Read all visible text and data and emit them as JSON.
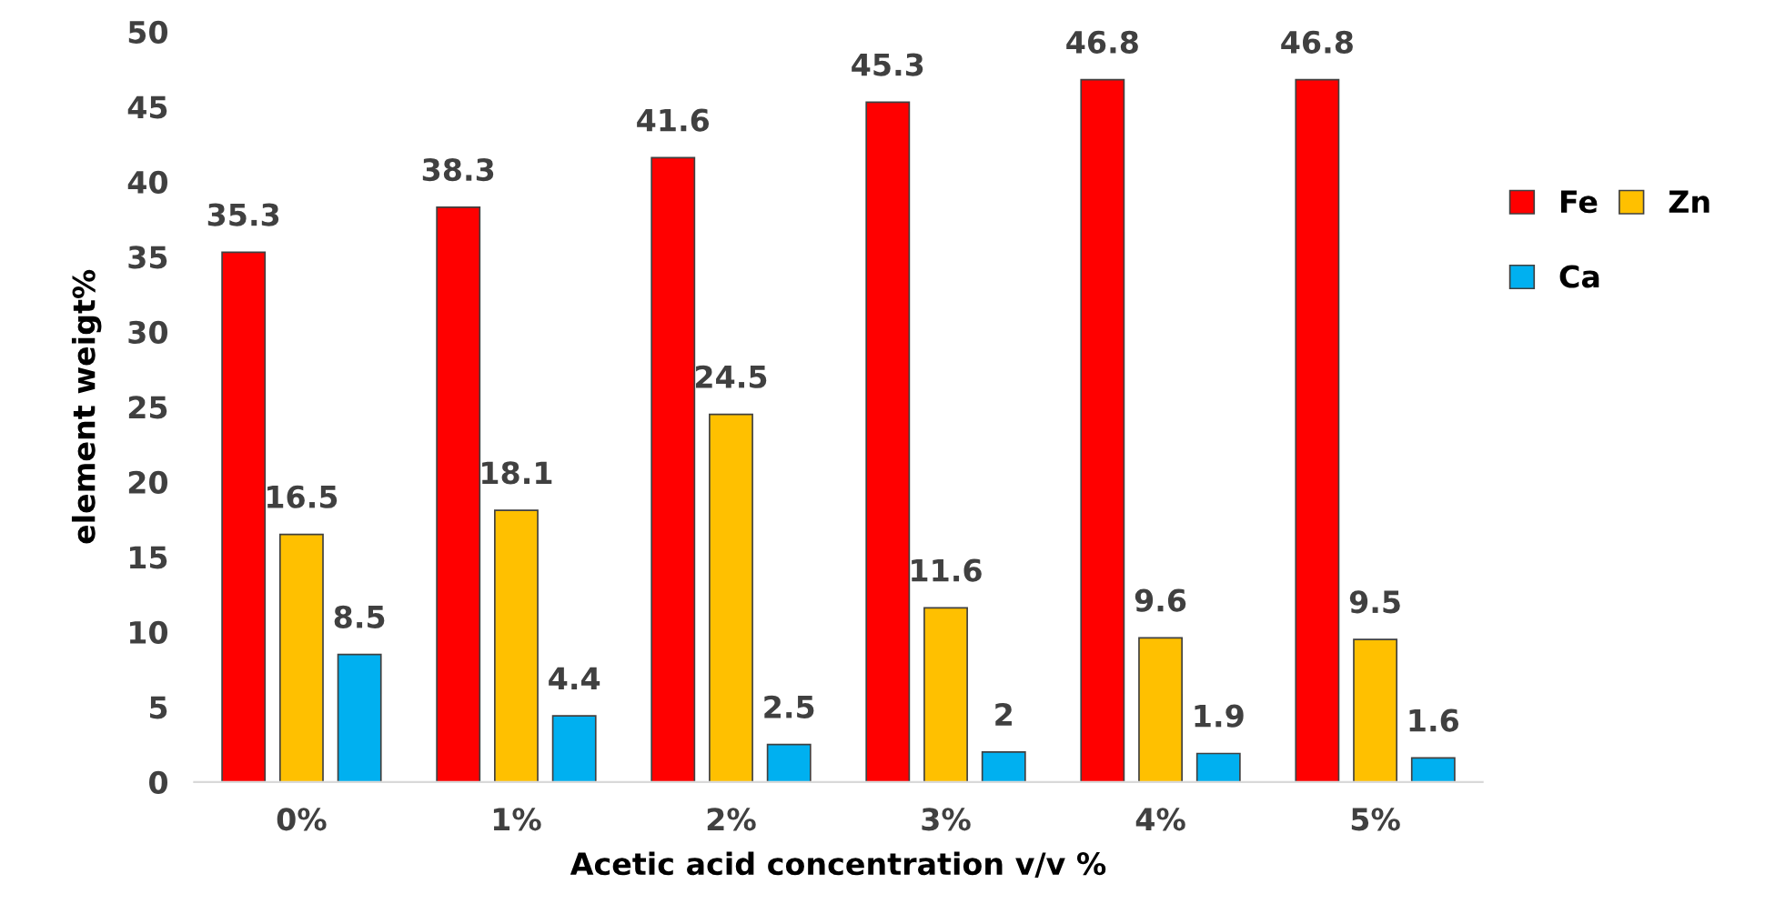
{
  "chart_data": {
    "type": "bar",
    "xlabel": "Acetic acid concentration v/v %",
    "ylabel": "element weigt%",
    "categories": [
      "0%",
      "1%",
      "2%",
      "3%",
      "4%",
      "5%"
    ],
    "series": [
      {
        "name": "Fe",
        "color": "#ff0000",
        "values": [
          35.3,
          38.3,
          41.6,
          45.3,
          46.8,
          46.8
        ]
      },
      {
        "name": "Zn",
        "color": "#ffc000",
        "values": [
          16.5,
          18.1,
          24.5,
          11.6,
          9.6,
          9.5
        ]
      },
      {
        "name": "Ca",
        "color": "#00b0f0",
        "values": [
          8.5,
          4.4,
          2.5,
          2,
          1.9,
          1.6
        ]
      }
    ],
    "ylim": [
      0,
      50
    ],
    "yticks": [
      0,
      5,
      10,
      15,
      20,
      25,
      30,
      35,
      40,
      45,
      50
    ],
    "data_labels": true,
    "grid": false,
    "legend": "right"
  }
}
